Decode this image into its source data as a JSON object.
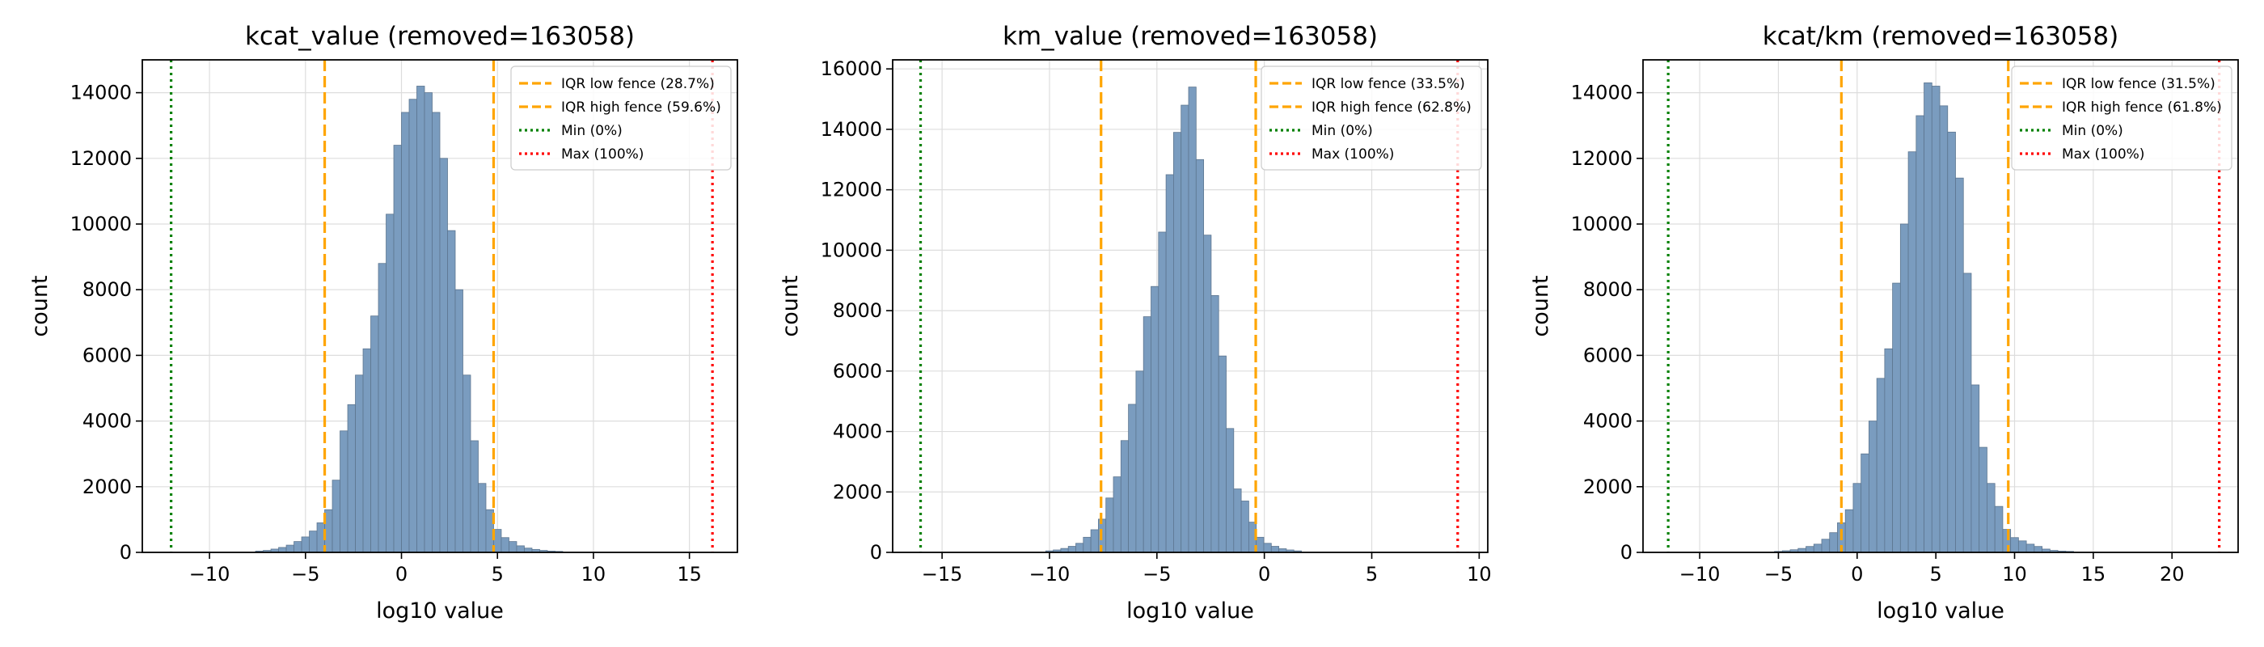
{
  "chart_data": [
    {
      "type": "bar",
      "title": "kcat_value (removed=163058)",
      "xlabel": "log10 value",
      "ylabel": "count",
      "xlim": [
        -13.5,
        17.5
      ],
      "ylim": [
        0,
        15000
      ],
      "xticks": [
        -10,
        -5,
        0,
        5,
        10,
        15
      ],
      "yticks": [
        0,
        2000,
        4000,
        6000,
        8000,
        10000,
        12000,
        14000
      ],
      "grid": true,
      "legend_position": "top-right",
      "bin_width": 0.4,
      "x": [
        -7.4,
        -7.0,
        -6.6,
        -6.2,
        -5.8,
        -5.4,
        -5.0,
        -4.6,
        -4.2,
        -3.8,
        -3.4,
        -3.0,
        -2.6,
        -2.2,
        -1.8,
        -1.4,
        -1.0,
        -0.6,
        -0.2,
        0.2,
        0.6,
        1.0,
        1.4,
        1.8,
        2.2,
        2.6,
        3.0,
        3.4,
        3.8,
        4.2,
        4.6,
        5.0,
        5.4,
        5.8,
        6.2,
        6.6,
        7.0,
        7.4,
        7.8,
        8.2
      ],
      "values": [
        40,
        60,
        100,
        150,
        220,
        330,
        470,
        650,
        900,
        1300,
        2200,
        3700,
        4500,
        5400,
        6200,
        7200,
        8800,
        10300,
        12400,
        13400,
        13800,
        14200,
        14000,
        13400,
        12000,
        9800,
        8000,
        5400,
        3400,
        2100,
        1300,
        700,
        450,
        330,
        200,
        130,
        90,
        60,
        40,
        30
      ],
      "vlines": [
        {
          "label": "IQR low fence (28.7%)",
          "x": -4.0,
          "style": "dashed",
          "color": "#ffa500"
        },
        {
          "label": "IQR high fence (59.6%)",
          "x": 4.8,
          "style": "dashed",
          "color": "#ffa500"
        },
        {
          "label": "Min (0%)",
          "x": -12.0,
          "style": "dotted",
          "color": "#008000"
        },
        {
          "label": "Max (100%)",
          "x": 16.2,
          "style": "dotted",
          "color": "#ff0000"
        }
      ]
    },
    {
      "type": "bar",
      "title": "km_value (removed=163058)",
      "xlabel": "log10 value",
      "ylabel": "count",
      "xlim": [
        -17.3,
        10.4
      ],
      "ylim": [
        0,
        16300
      ],
      "xticks": [
        -15,
        -10,
        -5,
        0,
        5,
        10
      ],
      "yticks": [
        0,
        2000,
        4000,
        6000,
        8000,
        10000,
        12000,
        14000,
        16000
      ],
      "grid": true,
      "legend_position": "top-right",
      "bin_width": 0.35,
      "x": [
        -10.0,
        -9.65,
        -9.3,
        -8.95,
        -8.6,
        -8.25,
        -7.9,
        -7.55,
        -7.2,
        -6.85,
        -6.5,
        -6.15,
        -5.8,
        -5.45,
        -5.1,
        -4.75,
        -4.4,
        -4.05,
        -3.7,
        -3.35,
        -3.0,
        -2.65,
        -2.3,
        -1.95,
        -1.6,
        -1.25,
        -0.9,
        -0.55,
        -0.2,
        0.15,
        0.5,
        0.85,
        1.2,
        1.55
      ],
      "values": [
        50,
        80,
        130,
        200,
        300,
        500,
        750,
        1100,
        1800,
        2500,
        3700,
        4900,
        6000,
        7800,
        8800,
        10600,
        12500,
        13900,
        14800,
        15400,
        13000,
        10500,
        8500,
        6500,
        4100,
        2100,
        1700,
        1000,
        500,
        300,
        200,
        120,
        80,
        50
      ],
      "vlines": [
        {
          "label": "IQR low fence (33.5%)",
          "x": -7.6,
          "style": "dashed",
          "color": "#ffa500"
        },
        {
          "label": "IQR high fence (62.8%)",
          "x": -0.4,
          "style": "dashed",
          "color": "#ffa500"
        },
        {
          "label": "Min (0%)",
          "x": -16.0,
          "style": "dotted",
          "color": "#008000"
        },
        {
          "label": "Max (100%)",
          "x": 9.0,
          "style": "dotted",
          "color": "#ff0000"
        }
      ]
    },
    {
      "type": "bar",
      "title": "kcat/km (removed=163058)",
      "xlabel": "log10 value",
      "ylabel": "count",
      "xlim": [
        -13.6,
        24.2
      ],
      "ylim": [
        0,
        15000
      ],
      "xticks": [
        -10,
        -5,
        0,
        5,
        10,
        15,
        20
      ],
      "yticks": [
        0,
        2000,
        4000,
        6000,
        8000,
        10000,
        12000,
        14000
      ],
      "grid": true,
      "legend_position": "top-right",
      "bin_width": 0.5,
      "x": [
        -5.0,
        -4.5,
        -4.0,
        -3.5,
        -3.0,
        -2.5,
        -2.0,
        -1.5,
        -1.0,
        -0.5,
        0.0,
        0.5,
        1.0,
        1.5,
        2.0,
        2.5,
        3.0,
        3.5,
        4.0,
        4.5,
        5.0,
        5.5,
        6.0,
        6.5,
        7.0,
        7.5,
        8.0,
        8.5,
        9.0,
        9.5,
        10.0,
        10.5,
        11.0,
        11.5,
        12.0,
        12.5,
        13.0,
        13.5
      ],
      "values": [
        30,
        50,
        80,
        120,
        180,
        250,
        400,
        600,
        900,
        1300,
        2100,
        3000,
        4000,
        5300,
        6200,
        8200,
        10000,
        12200,
        13300,
        14300,
        14200,
        13600,
        12800,
        11400,
        8500,
        5100,
        3200,
        2100,
        1400,
        700,
        450,
        350,
        250,
        180,
        100,
        60,
        40,
        30
      ],
      "vlines": [
        {
          "label": "IQR low fence (31.5%)",
          "x": -1.0,
          "style": "dashed",
          "color": "#ffa500"
        },
        {
          "label": "IQR high fence (61.8%)",
          "x": 9.6,
          "style": "dashed",
          "color": "#ffa500"
        },
        {
          "label": "Min (0%)",
          "x": -12.0,
          "style": "dotted",
          "color": "#008000"
        },
        {
          "label": "Max (100%)",
          "x": 23.0,
          "style": "dotted",
          "color": "#ff0000"
        }
      ]
    }
  ]
}
